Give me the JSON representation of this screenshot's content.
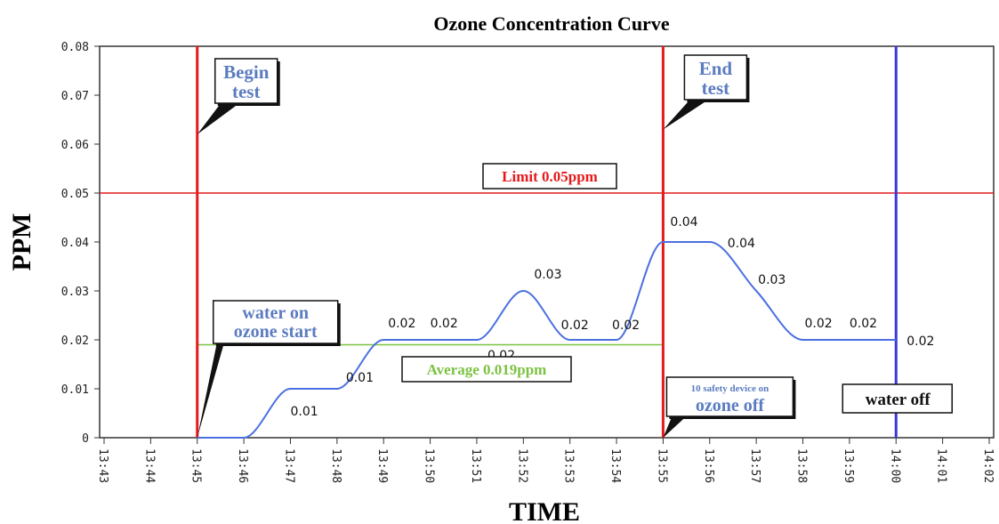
{
  "chart_data": {
    "type": "line",
    "title": "Ozone Concentration Curve",
    "xlabel": "TIME",
    "ylabel": "PPM",
    "ylim": [
      0,
      0.08
    ],
    "y_ticks": [
      "0",
      "0.01",
      "0.02",
      "0.03",
      "0.04",
      "0.05",
      "0.06",
      "0.07",
      "0.08"
    ],
    "x_ticks": [
      "13:43",
      "13:44",
      "13:45",
      "13:46",
      "13:47",
      "13:48",
      "13:49",
      "13:50",
      "13:51",
      "13:52",
      "13:53",
      "13:54",
      "13:55",
      "13:56",
      "13:57",
      "13:58",
      "13:59",
      "14:00",
      "14:01",
      "14:02"
    ],
    "grid": false,
    "series": [
      {
        "color": "#4a6fe0",
        "points": [
          {
            "x": "13:45",
            "y": 0
          },
          {
            "x": "13:46",
            "y": 0
          },
          {
            "x": "13:47",
            "y": 0.01,
            "label": "0.01"
          },
          {
            "x": "13:48",
            "y": 0.01,
            "label": "0.01"
          },
          {
            "x": "13:49",
            "y": 0.02,
            "label": "0.02"
          },
          {
            "x": "13:50",
            "y": 0.02,
            "label": "0.02"
          },
          {
            "x": "13:51",
            "y": 0.02,
            "label": "0.02"
          },
          {
            "x": "13:52",
            "y": 0.03,
            "label": "0.03"
          },
          {
            "x": "13:53",
            "y": 0.02,
            "label": "0.02"
          },
          {
            "x": "13:54",
            "y": 0.02,
            "label": "0.02"
          },
          {
            "x": "13:55",
            "y": 0.04,
            "label": "0.04"
          },
          {
            "x": "13:56",
            "y": 0.04,
            "label": "0.04"
          },
          {
            "x": "13:57",
            "y": 0.03,
            "label": "0.03"
          },
          {
            "x": "13:58",
            "y": 0.02,
            "label": "0.02"
          },
          {
            "x": "13:59",
            "y": 0.02,
            "label": "0.02"
          },
          {
            "x": "14:00",
            "y": 0.02,
            "label": "0.02"
          }
        ]
      }
    ],
    "reference_lines": {
      "limit": {
        "value": 0.05,
        "label": "Limit 0.05ppm",
        "color": "#e41a1c"
      },
      "average": {
        "value": 0.019,
        "from": "13:45",
        "to": "13:55",
        "label": "Average 0.019ppm",
        "color": "#7cc242"
      },
      "begin": {
        "x": "13:45",
        "color": "#e41a1c"
      },
      "end": {
        "x": "13:55",
        "color": "#e41a1c"
      },
      "water_off": {
        "x": "14:00",
        "color": "#3a3ad8"
      }
    },
    "annotations": {
      "begin_test": [
        "Begin",
        "test"
      ],
      "end_test": [
        "End",
        "test"
      ],
      "water_on": [
        "water on",
        "ozone start"
      ],
      "safety_small": "10 safety device on",
      "safety_big": "ozone off",
      "water_off": "water off"
    },
    "colors": {
      "annotation_text": "#5b7cc0",
      "limit_text": "#e41a1c",
      "average_text": "#7cc242"
    }
  }
}
